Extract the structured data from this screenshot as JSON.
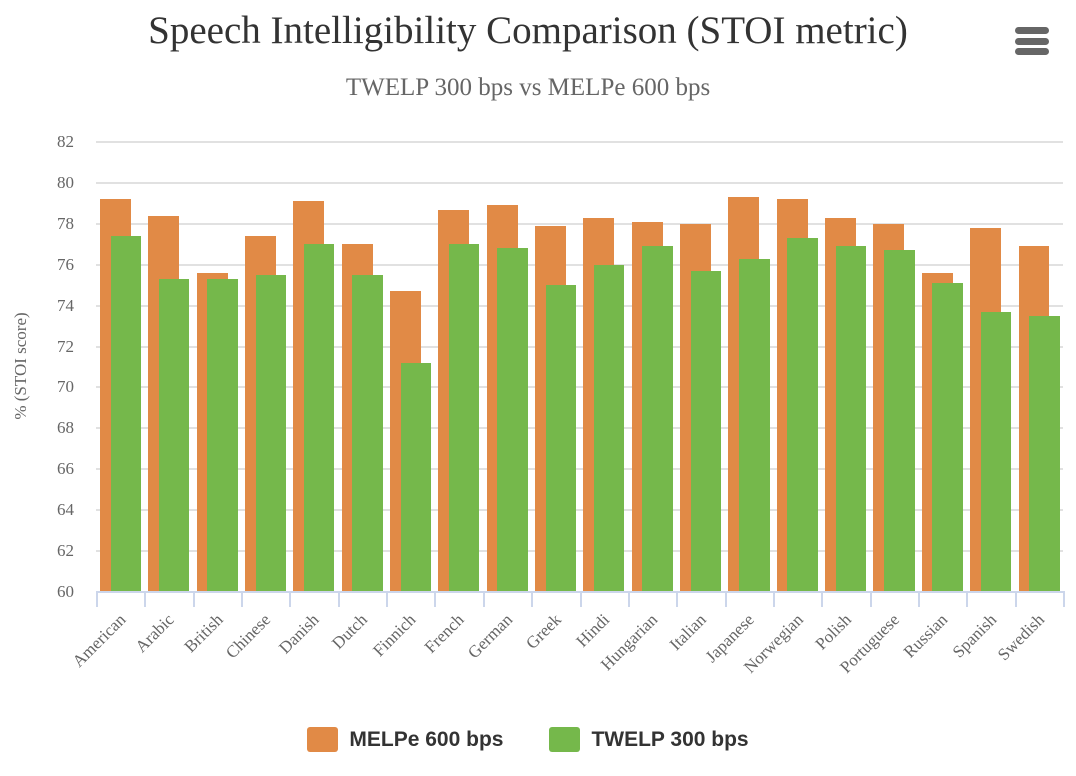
{
  "title": "Speech Intelligibility Comparison (STOI metric)",
  "subtitle": "TWELP 300 bps vs MELPe 600 bps",
  "icons": {
    "menu": "hamburger-menu-icon"
  },
  "chart_data": {
    "type": "bar",
    "title": "Speech Intelligibility Comparison (STOI metric)",
    "subtitle": "TWELP 300 bps vs MELPe 600 bps",
    "xlabel": "",
    "ylabel": "% (STOI score)",
    "ylim": [
      60,
      82
    ],
    "yticks": [
      60,
      62,
      64,
      66,
      68,
      70,
      72,
      74,
      76,
      78,
      80,
      82
    ],
    "grid": true,
    "legend_position": "bottom",
    "bar_layout": "overlapping",
    "categories": [
      "American",
      "Arabic",
      "British",
      "Chinese",
      "Danish",
      "Dutch",
      "Finnich",
      "French",
      "German",
      "Greek",
      "Hindi",
      "Hungarian",
      "Italian",
      "Japanese",
      "Norwegian",
      "Polish",
      "Portuguese",
      "Russian",
      "Spanish",
      "Swedish"
    ],
    "series": [
      {
        "name": "MELPe 600 bps",
        "color": "#E18A46",
        "values": [
          79.2,
          78.4,
          75.6,
          77.4,
          79.1,
          77.0,
          74.7,
          78.7,
          78.9,
          77.9,
          78.3,
          78.1,
          78.0,
          79.3,
          79.2,
          78.3,
          78.0,
          75.6,
          77.8,
          76.9
        ]
      },
      {
        "name": "TWELP 300 bps",
        "color": "#75B84B",
        "values": [
          77.4,
          75.3,
          75.3,
          75.5,
          77.0,
          75.5,
          71.2,
          77.0,
          76.8,
          75.0,
          76.0,
          76.9,
          75.7,
          76.3,
          77.3,
          76.9,
          76.7,
          75.1,
          73.7,
          73.5
        ]
      }
    ]
  }
}
